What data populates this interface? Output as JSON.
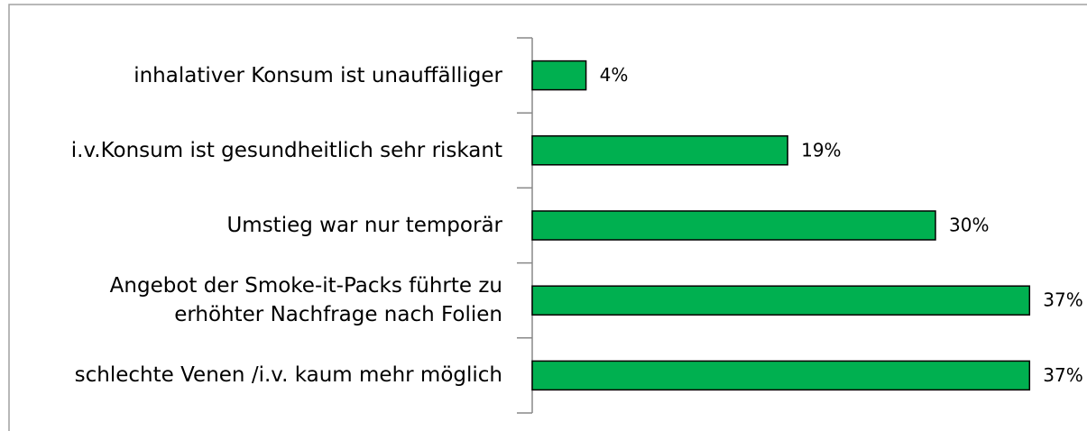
{
  "chart_data": {
    "type": "bar",
    "orientation": "horizontal",
    "categories": [
      "inhalativer Konsum ist unauffälliger",
      "i.v.Konsum ist gesundheitlich sehr riskant",
      "Umstieg war nur temporär",
      "Angebot der Smoke-it-Packs führte zu\nerhöhter Nachfrage nach Folien",
      "schlechte Venen /i.v. kaum mehr möglich"
    ],
    "values": [
      4,
      19,
      30,
      37,
      37
    ],
    "value_labels": [
      "4%",
      "19%",
      "30%",
      "37%",
      "37%"
    ],
    "color": "#00b050"
  }
}
